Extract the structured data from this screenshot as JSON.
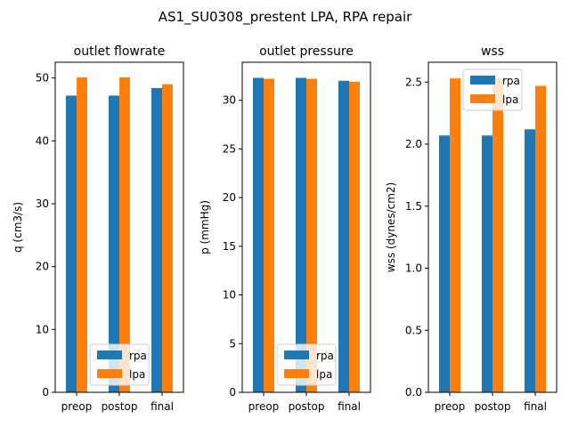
{
  "suptitle": "AS1_SU0308_prestent LPA, RPA repair",
  "chart_data": [
    {
      "type": "bar",
      "title": "outlet flowrate",
      "xlabel": "",
      "ylabel": "q (cm3/s)",
      "categories": [
        "preop",
        "postop",
        "final"
      ],
      "ylim": [
        0,
        52.5
      ],
      "yticks": [
        0,
        10,
        20,
        30,
        40,
        50
      ],
      "ytick_labels": [
        "0",
        "10",
        "20",
        "30",
        "40",
        "50"
      ],
      "legend": "lower-center",
      "grid": false,
      "series": [
        {
          "name": "rpa",
          "color": "#1f77b4",
          "values": [
            47.2,
            47.2,
            48.4
          ]
        },
        {
          "name": "lpa",
          "color": "#ff7f0e",
          "values": [
            50.1,
            50.1,
            49.0
          ]
        }
      ]
    },
    {
      "type": "bar",
      "title": "outlet pressure",
      "xlabel": "",
      "ylabel": "p (mmHg)",
      "categories": [
        "preop",
        "postop",
        "final"
      ],
      "ylim": [
        0,
        33.9
      ],
      "yticks": [
        0,
        5,
        10,
        15,
        20,
        25,
        30
      ],
      "ytick_labels": [
        "0",
        "5",
        "10",
        "15",
        "20",
        "25",
        "30"
      ],
      "legend": "lower-center",
      "grid": false,
      "series": [
        {
          "name": "rpa",
          "color": "#1f77b4",
          "values": [
            32.3,
            32.3,
            32.0
          ]
        },
        {
          "name": "lpa",
          "color": "#ff7f0e",
          "values": [
            32.2,
            32.2,
            31.9
          ]
        }
      ]
    },
    {
      "type": "bar",
      "title": "wss",
      "xlabel": "",
      "ylabel": "wss (dynes/cm2)",
      "categories": [
        "preop",
        "postop",
        "final"
      ],
      "ylim": [
        0,
        2.66
      ],
      "yticks": [
        0,
        0.5,
        1.0,
        1.5,
        2.0,
        2.5
      ],
      "ytick_labels": [
        "0.0",
        "0.5",
        "1.0",
        "1.5",
        "2.0",
        "2.5"
      ],
      "legend": "upper-center",
      "grid": false,
      "series": [
        {
          "name": "rpa",
          "color": "#1f77b4",
          "values": [
            2.07,
            2.07,
            2.12
          ]
        },
        {
          "name": "lpa",
          "color": "#ff7f0e",
          "values": [
            2.53,
            2.53,
            2.47
          ]
        }
      ]
    }
  ]
}
